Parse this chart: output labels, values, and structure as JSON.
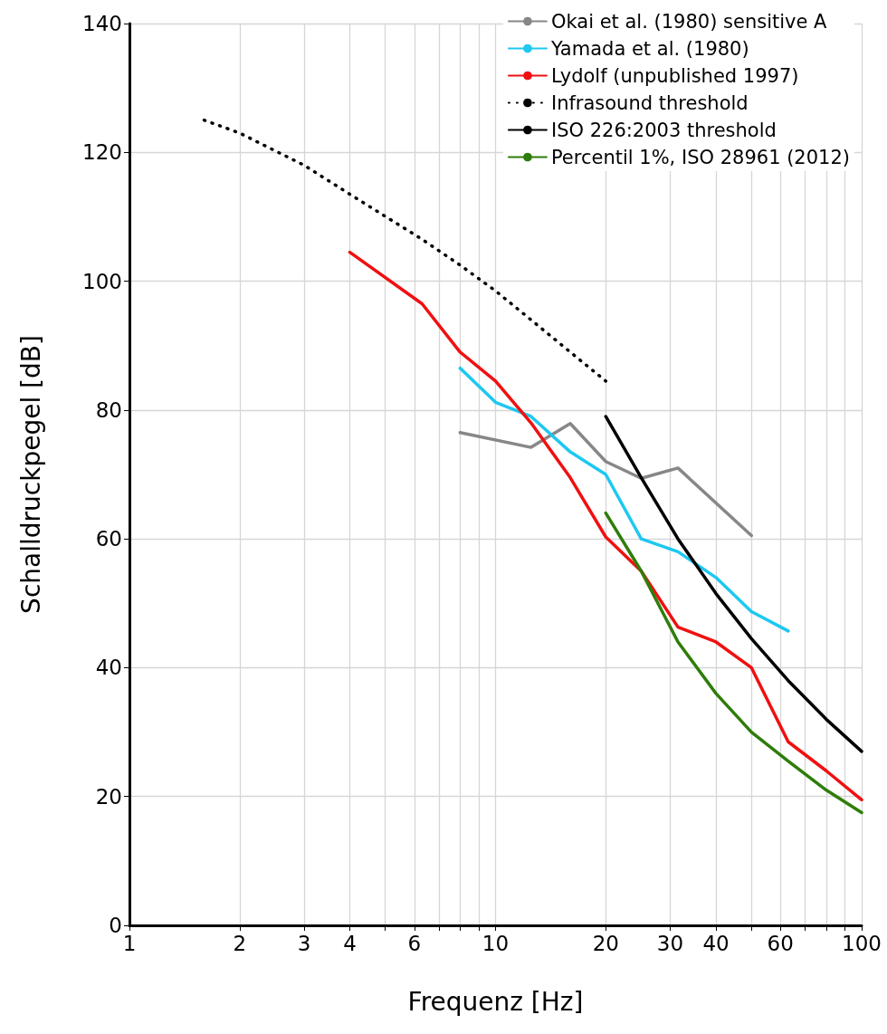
{
  "chart_data": {
    "type": "line",
    "xlabel": "Frequenz [Hz]",
    "ylabel": "Schalldruckpegel [dB]",
    "log": "x",
    "grid": true,
    "legend": "top right",
    "marker": "none",
    "xlim": [
      1,
      100
    ],
    "xticks": [
      1,
      2,
      3,
      4,
      {
        "value": 5,
        "label": null
      },
      6,
      {
        "value": 7,
        "label": null
      },
      {
        "value": 8,
        "label": null
      },
      {
        "value": 9,
        "label": null
      },
      10,
      20,
      30,
      40,
      {
        "value": 50,
        "label": null
      },
      60,
      {
        "value": 70,
        "label": null
      },
      {
        "value": 80,
        "label": null
      },
      {
        "value": 90,
        "label": null
      },
      100
    ],
    "ylim": [
      0,
      140
    ],
    "yticks": [
      0,
      20,
      40,
      60,
      80,
      100,
      120,
      140
    ],
    "series": [
      {
        "name": "Okai et al. (1980) sensitive A",
        "color": "#878787",
        "x": [
          8,
          12.5,
          16,
          20,
          25,
          31.5,
          50
        ],
        "values": [
          76.5,
          74.2,
          77.9,
          72,
          69.4,
          71,
          60.5
        ]
      },
      {
        "name": "Yamada et al. (1980)",
        "color": "#1ec8f0",
        "x": [
          8,
          10,
          12.5,
          16,
          20,
          25,
          31.5,
          40,
          50,
          63
        ],
        "values": [
          86.5,
          81.2,
          79,
          73.5,
          70,
          60,
          58,
          54,
          48.7,
          45.7
        ]
      },
      {
        "name": "Lydolf (unpublished 1997)",
        "color": "#f01010",
        "x": [
          4,
          6.3,
          8,
          10,
          12.5,
          16,
          20,
          25,
          31.5,
          40,
          50,
          63,
          80,
          100
        ],
        "values": [
          104.5,
          96.5,
          89,
          84.5,
          78,
          69.5,
          60.3,
          55,
          46.3,
          44,
          40,
          28.5,
          24,
          19.5
        ]
      },
      {
        "name": "Infrasound threshold",
        "color": "#000000",
        "line_style": "dotted",
        "x": [
          1.6,
          2,
          3,
          4,
          6.3,
          8,
          10,
          12.5,
          16,
          20
        ],
        "values": [
          125,
          123,
          118,
          113.5,
          106.5,
          102.5,
          98.5,
          94,
          89,
          84.5
        ]
      },
      {
        "name": "ISO 226:2003 threshold",
        "color": "#000000",
        "x": [
          20,
          25,
          31.5,
          40,
          50,
          63,
          80,
          100
        ],
        "values": [
          79,
          69.5,
          60,
          51.5,
          44.5,
          38,
          32,
          27
        ]
      },
      {
        "name": "Percentil 1%, ISO 28961 (2012)",
        "color": "#2e7d0a",
        "x": [
          20,
          25,
          31.5,
          40,
          50,
          63,
          80,
          100
        ],
        "values": [
          64,
          55,
          44,
          36,
          30,
          25.5,
          21,
          17.5
        ]
      }
    ]
  }
}
